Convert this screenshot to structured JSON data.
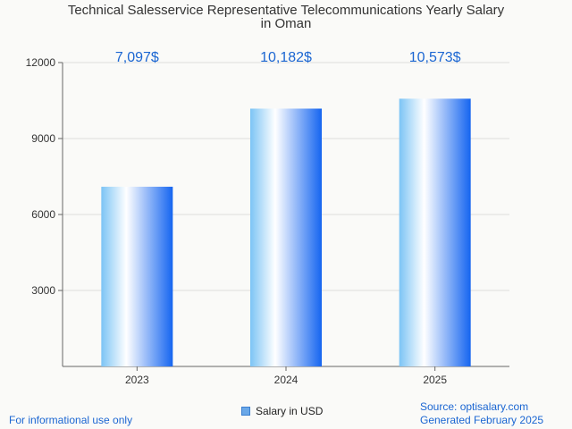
{
  "chart_data": {
    "type": "bar",
    "title_lines": [
      "Technical Salesservice Representative Telecommunications Yearly Salary",
      "in Oman"
    ],
    "categories": [
      "2023",
      "2024",
      "2025"
    ],
    "series": [
      {
        "name": "Salary in USD",
        "values": [
          7097,
          10182,
          10573
        ]
      }
    ],
    "data_labels": [
      "7,097$",
      "10,182$",
      "10,573$"
    ],
    "y_ticks": [
      "3000",
      "6000",
      "9000",
      "12000"
    ],
    "ylim": [
      0,
      12000
    ],
    "grid": true,
    "legend": "bottom-center",
    "colors": {
      "bar_light": "#ffffff",
      "bar_mid": "#7cc4f5",
      "bar_dark": "#1565f0",
      "label": "#1b66d2",
      "grid": "#dddddd"
    }
  },
  "footer": {
    "note": "For informational use only",
    "source": "Source: optisalary.com",
    "generated": "Generated February 2025"
  }
}
